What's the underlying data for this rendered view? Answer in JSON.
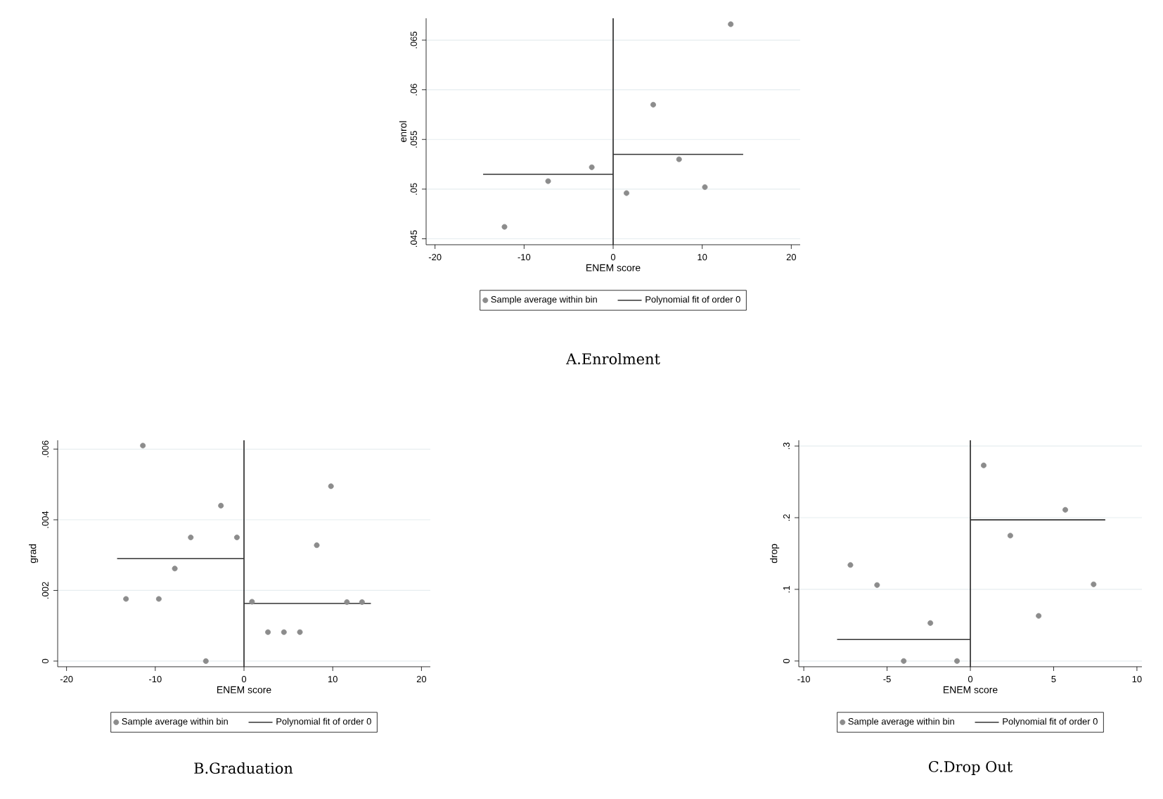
{
  "chart_data": [
    {
      "type": "scatter",
      "title": "A.Enrolment",
      "xlabel": "ENEM score",
      "ylabel": "enrol",
      "xlim": [
        -21,
        21
      ],
      "ylim": [
        0.0444,
        0.0672
      ],
      "xticks": [
        -20,
        -10,
        0,
        10,
        20
      ],
      "yticks": [
        {
          "value": 0.045,
          "label": ".045"
        },
        {
          "value": 0.05,
          "label": ".05"
        },
        {
          "value": 0.055,
          "label": ".055"
        },
        {
          "value": 0.06,
          "label": ".06"
        },
        {
          "value": 0.065,
          "label": ".065"
        }
      ],
      "grid": "y",
      "legend": "bottom",
      "series": [
        {
          "name": "Sample average within bin",
          "color": "#8c8c8c",
          "x": [
            -12.2,
            -7.3,
            -2.4,
            1.5,
            4.5,
            7.4,
            10.3,
            13.2
          ],
          "values": [
            0.0462,
            0.0508,
            0.0522,
            0.0496,
            0.0585,
            0.053,
            0.0502,
            0.0666
          ]
        },
        {
          "name": "Polynomial fit of order 0",
          "type": "line",
          "color": "#333333",
          "x": [
            -14.6,
            0
          ],
          "values": [
            0.0515,
            0.0515
          ]
        },
        {
          "type": "line",
          "color": "#333333",
          "x": [
            0,
            14.6
          ],
          "values": [
            0.0535,
            0.0535
          ]
        }
      ],
      "ref_lines": [
        {
          "axis": "x",
          "value": 0,
          "color": "#222222"
        }
      ]
    },
    {
      "type": "scatter",
      "title": "B.Graduation",
      "xlabel": "ENEM score",
      "ylabel": "grad",
      "xlim": [
        -21,
        21
      ],
      "ylim": [
        -0.00016,
        0.00625
      ],
      "xticks": [
        -20,
        -10,
        0,
        10,
        20
      ],
      "yticks": [
        0,
        {
          "value": 0.002,
          "label": ".002"
        },
        {
          "value": 0.004,
          "label": ".004"
        },
        {
          "value": 0.006,
          "label": ".006"
        }
      ],
      "grid": "y",
      "legend": "bottom",
      "series": [
        {
          "name": "Sample average within bin",
          "color": "#8c8c8c",
          "x": [
            -13.3,
            -11.4,
            -9.6,
            -7.8,
            -6.0,
            -4.3,
            -2.6,
            -0.8,
            0.9,
            2.7,
            4.5,
            6.3,
            8.2,
            9.8,
            11.6,
            13.3
          ],
          "values": [
            0.00176,
            0.0061,
            0.00176,
            0.00262,
            0.0035,
            0,
            0.0044,
            0.0035,
            0.00168,
            0.00082,
            0.00082,
            0.00082,
            0.00328,
            0.00495,
            0.00167,
            0.00167
          ]
        },
        {
          "name": "Polynomial fit of order 0",
          "type": "line",
          "color": "#333333",
          "x": [
            -14.3,
            0
          ],
          "values": [
            0.0029,
            0.0029
          ]
        },
        {
          "type": "line",
          "color": "#333333",
          "x": [
            0,
            14.3
          ],
          "values": [
            0.00163,
            0.00163
          ]
        }
      ],
      "ref_lines": [
        {
          "axis": "x",
          "value": 0,
          "color": "#222222"
        }
      ]
    },
    {
      "type": "scatter",
      "title": "C.Drop Out",
      "xlabel": "ENEM score",
      "ylabel": "drop",
      "xlim": [
        -10.3,
        10.3
      ],
      "ylim": [
        -0.008,
        0.308
      ],
      "xticks": [
        -10,
        -5,
        0,
        5,
        10
      ],
      "yticks": [
        0,
        {
          "value": 0.1,
          "label": ".1"
        },
        {
          "value": 0.2,
          "label": ".2"
        },
        {
          "value": 0.3,
          "label": ".3"
        }
      ],
      "grid": "y",
      "legend": "bottom",
      "series": [
        {
          "name": "Sample average within bin",
          "color": "#8c8c8c",
          "x": [
            -7.2,
            -5.6,
            -4.0,
            -2.4,
            -0.8,
            0.8,
            2.4,
            4.1,
            5.7,
            7.4
          ],
          "values": [
            0.134,
            0.106,
            0,
            0.053,
            0,
            0.273,
            0.175,
            0.063,
            0.211,
            0.107
          ]
        },
        {
          "name": "Polynomial fit of order 0",
          "type": "line",
          "color": "#333333",
          "x": [
            -8,
            0
          ],
          "values": [
            0.03,
            0.03
          ]
        },
        {
          "type": "line",
          "color": "#333333",
          "x": [
            0,
            8.1
          ],
          "values": [
            0.197,
            0.197
          ]
        }
      ],
      "ref_lines": [
        {
          "axis": "x",
          "value": 0,
          "color": "#222222"
        }
      ]
    }
  ]
}
